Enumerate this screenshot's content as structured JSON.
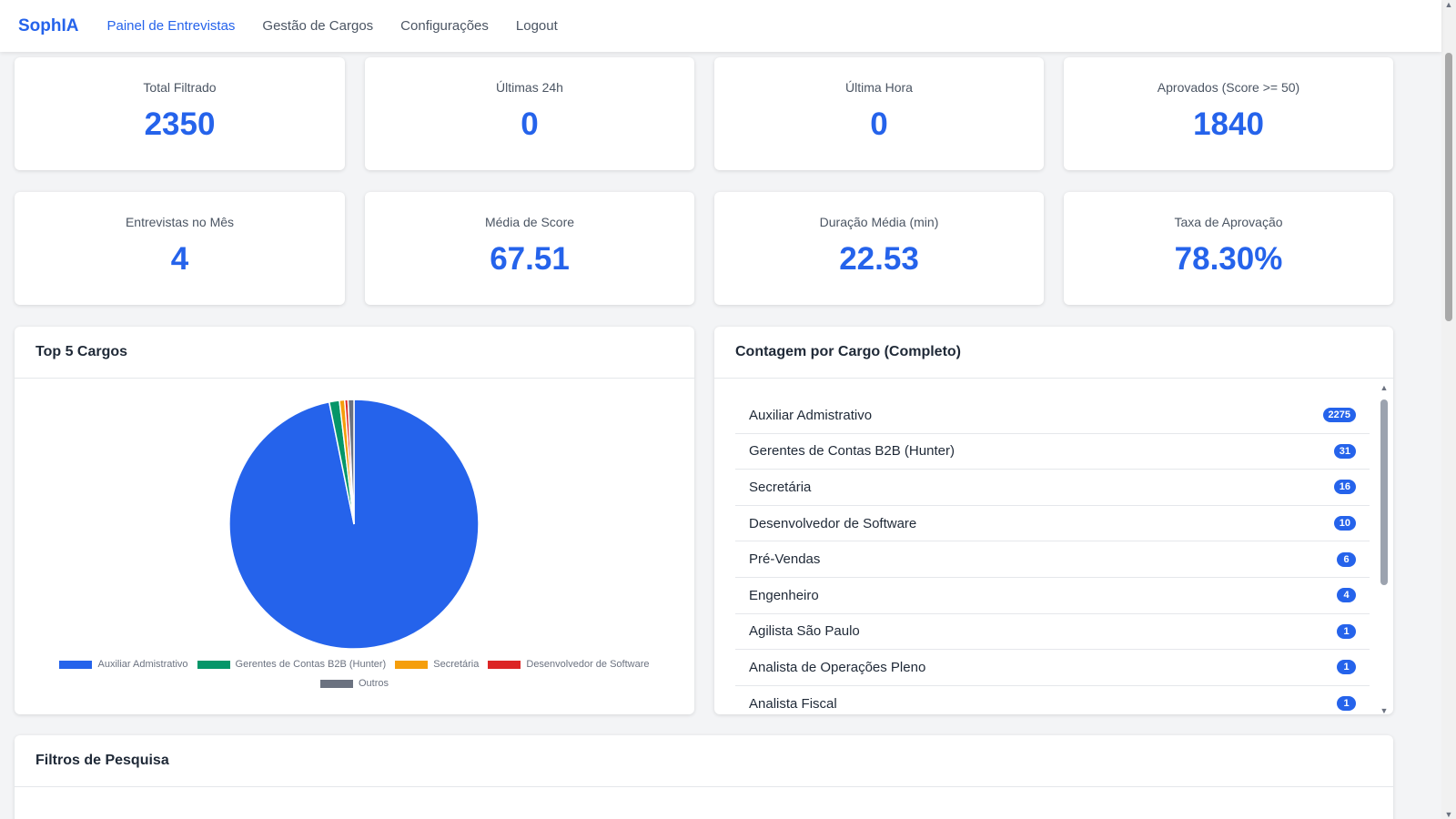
{
  "nav": {
    "brand": "SophIA",
    "links": [
      "Painel de Entrevistas",
      "Gestão de Cargos",
      "Configurações",
      "Logout"
    ]
  },
  "stats": [
    {
      "label": "Total Filtrado",
      "value": "2350"
    },
    {
      "label": "Últimas 24h",
      "value": "0"
    },
    {
      "label": "Última Hora",
      "value": "0"
    },
    {
      "label": "Aprovados (Score >= 50)",
      "value": "1840"
    },
    {
      "label": "Entrevistas no Mês",
      "value": "4"
    },
    {
      "label": "Média de Score",
      "value": "67.51"
    },
    {
      "label": "Duração Média (min)",
      "value": "22.53"
    },
    {
      "label": "Taxa de Aprovação",
      "value": "78.30%"
    }
  ],
  "top5": {
    "title": "Top 5 Cargos"
  },
  "chart_data": {
    "type": "pie",
    "title": "",
    "categories": [
      "Auxiliar Admistrativo",
      "Gerentes de Contas B2B (Hunter)",
      "Secretária",
      "Desenvolvedor de Software",
      "Outros"
    ],
    "values": [
      2275,
      31,
      16,
      10,
      18
    ],
    "colors": [
      "#2563eb",
      "#059669",
      "#f59e0b",
      "#dc2626",
      "#6b7280"
    ],
    "legend": "bottom"
  },
  "counts": {
    "title": "Contagem por Cargo (Completo)",
    "items": [
      {
        "label": "Auxiliar Admistrativo",
        "count": "2275"
      },
      {
        "label": "Gerentes de Contas B2B (Hunter)",
        "count": "31"
      },
      {
        "label": "Secretária",
        "count": "16"
      },
      {
        "label": "Desenvolvedor de Software",
        "count": "10"
      },
      {
        "label": "Pré-Vendas",
        "count": "6"
      },
      {
        "label": "Engenheiro",
        "count": "4"
      },
      {
        "label": "Agilista São Paulo",
        "count": "1"
      },
      {
        "label": "Analista de Operações Pleno",
        "count": "1"
      },
      {
        "label": "Analista Fiscal",
        "count": "1"
      }
    ]
  },
  "filters": {
    "title": "Filtros de Pesquisa"
  }
}
